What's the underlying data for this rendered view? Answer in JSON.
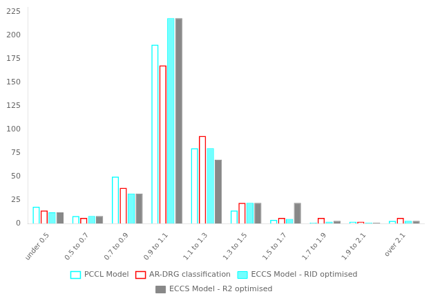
{
  "chart_data": {
    "type": "bar",
    "categories": [
      "under 0.5",
      "0.5 to 0.7",
      "0.7 to 0.9",
      "0.9 to 1.1",
      "1.1 to 1.3",
      "1.3 to 1.5",
      "1.5 to 1.7",
      "1.7 to 1.9",
      "1.9 to 2.1",
      "over 2.1"
    ],
    "series": [
      {
        "name": "PCCL Model",
        "color": "#00FFFF",
        "values": [
          18,
          8,
          50,
          190,
          80,
          14,
          4,
          1,
          2,
          3
        ]
      },
      {
        "name": "AR-DRG classification",
        "color": "#FF0000",
        "values": [
          14,
          6,
          38,
          168,
          93,
          22,
          6,
          6,
          2,
          6
        ]
      },
      {
        "name": "ECCS Model - RID optimised",
        "color": "#00FFFF",
        "values": [
          12,
          8,
          32,
          218,
          80,
          22,
          5,
          2,
          1,
          3
        ]
      },
      {
        "name": "ECCS Model - R2 optimised",
        "color": "#888888",
        "values": [
          12,
          8,
          32,
          218,
          68,
          22,
          22,
          3,
          1,
          3
        ]
      }
    ],
    "ylim": [
      0,
      230
    ],
    "yticks": [
      0,
      25,
      50,
      75,
      100,
      125,
      150,
      175,
      200,
      225
    ],
    "grid": false,
    "legend": "bottom"
  }
}
